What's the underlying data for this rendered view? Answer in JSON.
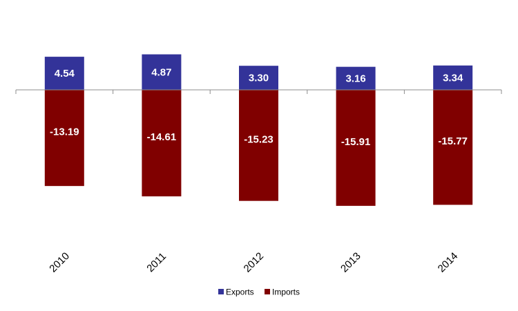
{
  "chart_data": {
    "type": "bar",
    "stacked": true,
    "categories": [
      "2010",
      "2011",
      "2012",
      "2013",
      "2014"
    ],
    "series": [
      {
        "name": "Exports",
        "color": "#333399",
        "values": [
          4.54,
          4.87,
          3.3,
          3.16,
          3.34
        ],
        "labels": [
          "4.54",
          "4.87",
          "3.30",
          "3.16",
          "3.34"
        ]
      },
      {
        "name": "Imports",
        "color": "#800000",
        "values": [
          -13.19,
          -14.61,
          -15.23,
          -15.91,
          -15.77
        ],
        "labels": [
          "-13.19",
          "-14.61",
          "-15.23",
          "-15.91",
          "-15.77"
        ]
      }
    ],
    "title": "",
    "xlabel": "",
    "ylabel": "",
    "ylim": [
      -20,
      10
    ],
    "grid": false,
    "legend_position": "bottom"
  }
}
